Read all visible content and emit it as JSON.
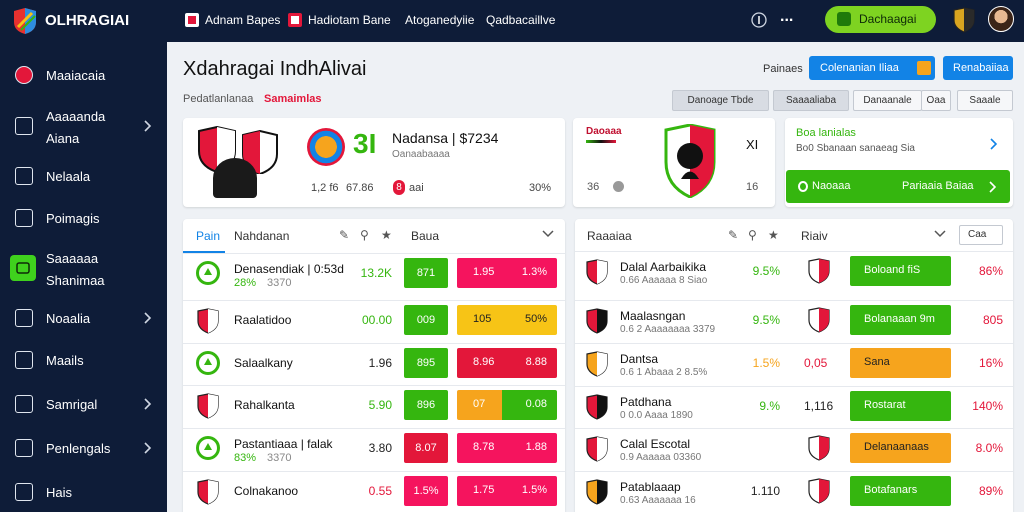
{
  "topbar": {
    "brand": "OLHRAGIAI",
    "nav": [
      "Adnam Bapes",
      "Hadiotam Bane",
      "Atoganedyiie",
      "Qadbacaillve"
    ],
    "menu": "...",
    "cta": "Dachaagai"
  },
  "sidebar": [
    {
      "lines": [
        "Maaiacaia"
      ]
    },
    {
      "lines": [
        "Aaaaanda",
        "Aiana"
      ],
      "chevron": true
    },
    {
      "lines": [
        "Nelaala"
      ]
    },
    {
      "lines": [
        "Poimagis"
      ]
    },
    {
      "lines": [
        "Saaaaaa",
        "Shanimaa"
      ],
      "active": true
    },
    {
      "lines": [
        "Noaalia"
      ],
      "chevron": true
    },
    {
      "lines": [
        "Maails"
      ]
    },
    {
      "lines": [
        "Samrigal"
      ],
      "chevron": true
    },
    {
      "lines": [
        "Penlengals"
      ],
      "chevron": true
    },
    {
      "lines": [
        "Hais"
      ]
    }
  ],
  "page": {
    "title": "Xdahragai IndhAlivai",
    "subtitle": "Pedatlanlanaa",
    "subtitle_highlight": "Samaimlas",
    "label": "Painaes",
    "primary_button": "Colenanian Iliaa",
    "secondary_button": "Renabaiiaa",
    "filters": [
      "Danoage Tbde",
      "Saaaaliaba",
      "Danaanale",
      "Oaa",
      "Saaale"
    ]
  },
  "match_card": {
    "score": "3I",
    "title": "Nadansa | $7234",
    "subtitle": "Oanaabaaaa",
    "stat1": "1,2 f6",
    "stat2": "67.86",
    "badge": "8",
    "stat3": "aai",
    "stat4": "30%"
  },
  "team_card": {
    "label": "Daoaaa",
    "mark": "XI",
    "left": "36",
    "right": "16"
  },
  "promo_card": {
    "title": "Boa lanialas",
    "subtitle": "Bo0 Sbanaan sanaeag Sia",
    "button_left": "Naoaaa",
    "button_right": "Pariaaia Baiaa"
  },
  "left_table": {
    "tab": "Pain",
    "column": "Nahdanan",
    "column2": "Baua",
    "rows": [
      {
        "name": "Denasendiak | 0:53d",
        "sub": "28%",
        "sub2": "3370",
        "value": "13.2K",
        "value_color": "green",
        "cell": "871",
        "cell_color": "green",
        "box": "pink",
        "box_left": "1.95",
        "box_right": "1.3%"
      },
      {
        "name": "Raalatidoo",
        "value": "00.00",
        "value_color": "green",
        "cell": "009",
        "cell_color": "green",
        "box": "yellow",
        "box_left": "105",
        "box_right": "50%"
      },
      {
        "name": "Salaalkany",
        "value": "1.96",
        "value_color": "dark",
        "cell": "895",
        "cell_color": "green",
        "box": "red",
        "box_left": "8.96",
        "box_right": "8.88"
      },
      {
        "name": "Rahalkanta",
        "value": "5.90",
        "value_color": "green",
        "cell": "896",
        "cell_color": "green",
        "box": "orange-green",
        "box_left": "07",
        "box_right": "0.08"
      },
      {
        "name": "Pastantiaaa | falak",
        "sub": "83%",
        "sub2": "3370",
        "value": "3.80",
        "value_color": "dark",
        "cell": "8.07",
        "cell_color": "red",
        "box": "pink",
        "box_left": "8.78",
        "box_right": "1.88"
      },
      {
        "name": "Colnakanoo",
        "value": "0.55",
        "value_color": "red",
        "cell": "1.5%",
        "cell_color": "pink",
        "box": "pink",
        "box_left": "1.75",
        "box_right": "1.5%"
      }
    ]
  },
  "right_table": {
    "title": "Raaaiaa",
    "column": "Riaiv",
    "dropdown": "Caa",
    "rows": [
      {
        "name": "Dalal Aarbaikika",
        "sub": "0.66 Aaaaaa 8 Siao",
        "value": "9.5%",
        "value_color": "green",
        "button": "Boloand fiS",
        "button_color": "green",
        "pct": "86%"
      },
      {
        "name": "Maalasngan",
        "sub": "0.6 2 Aaaaaaaa 3379",
        "value": "9.5%",
        "value_color": "green",
        "button": "Bolanaaan 9m",
        "button_color": "green",
        "pct": "805"
      },
      {
        "name": "Dantsa",
        "sub": "0.6 1 Abaaa 2 8.5%",
        "value": "1.5%",
        "value_color": "orange",
        "odds": "0,05",
        "button": "Sana",
        "button_color": "orange",
        "pct": "16%"
      },
      {
        "name": "Patdhana",
        "sub": "0 0.0 Aaaa 1890",
        "value": "9.%",
        "value_color": "green",
        "odds": "1,116",
        "button": "Rostarat",
        "button_color": "green",
        "pct": "140%"
      },
      {
        "name": "Calal Escotal",
        "sub": "0.9 Aaaaaa 03360",
        "button": "Delanaanaas",
        "button_color": "orange",
        "pct": "8.0%"
      },
      {
        "name": "Patablaaap",
        "sub": "0.63 Aaaaaaa 16",
        "value": "1.110",
        "value_color": "dark",
        "button": "Botafanars",
        "button_color": "green",
        "pct": "89%"
      }
    ]
  }
}
